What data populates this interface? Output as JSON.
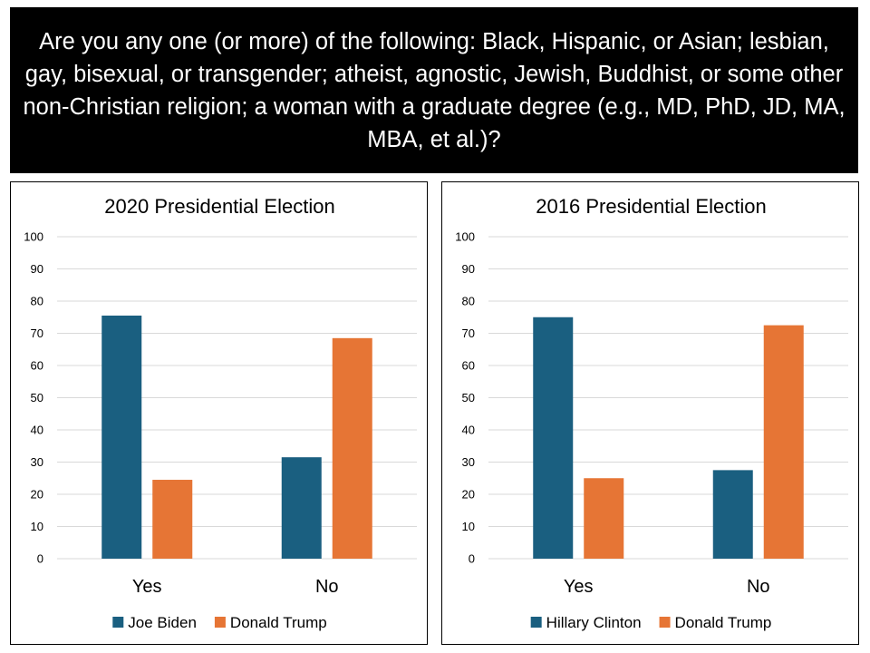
{
  "question": "Are you any one (or more) of the following: Black, Hispanic, or Asian; lesbian, gay, bisexual, or transgender; atheist, agnostic, Jewish, Buddhist, or some other non-Christian religion; a woman with a graduate degree (e.g., MD, PhD, JD, MA, MBA, et al.)?",
  "colors": {
    "series_a": "#1a5f80",
    "series_b": "#e67535",
    "grid": "#d9d9d9",
    "text": "#000000"
  },
  "chart_data": [
    {
      "type": "bar",
      "title": "2020 Presidential Election",
      "categories": [
        "Yes",
        "No"
      ],
      "series": [
        {
          "name": "Joe Biden",
          "values": [
            75.5,
            31.5
          ]
        },
        {
          "name": "Donald Trump",
          "values": [
            24.5,
            68.5
          ]
        }
      ],
      "ylim": [
        0,
        100
      ],
      "yticks": [
        "0",
        "10",
        "20",
        "30",
        "40",
        "50",
        "60",
        "70",
        "80",
        "90",
        "100"
      ],
      "grid": true,
      "legend": "bottom"
    },
    {
      "type": "bar",
      "title": "2016 Presidential Election",
      "categories": [
        "Yes",
        "No"
      ],
      "series": [
        {
          "name": "Hillary Clinton",
          "values": [
            75,
            27.5
          ]
        },
        {
          "name": "Donald Trump",
          "values": [
            25,
            72.5
          ]
        }
      ],
      "ylim": [
        0,
        100
      ],
      "yticks": [
        "0",
        "10",
        "20",
        "30",
        "40",
        "50",
        "60",
        "70",
        "80",
        "90",
        "100"
      ],
      "grid": true,
      "legend": "bottom"
    }
  ]
}
